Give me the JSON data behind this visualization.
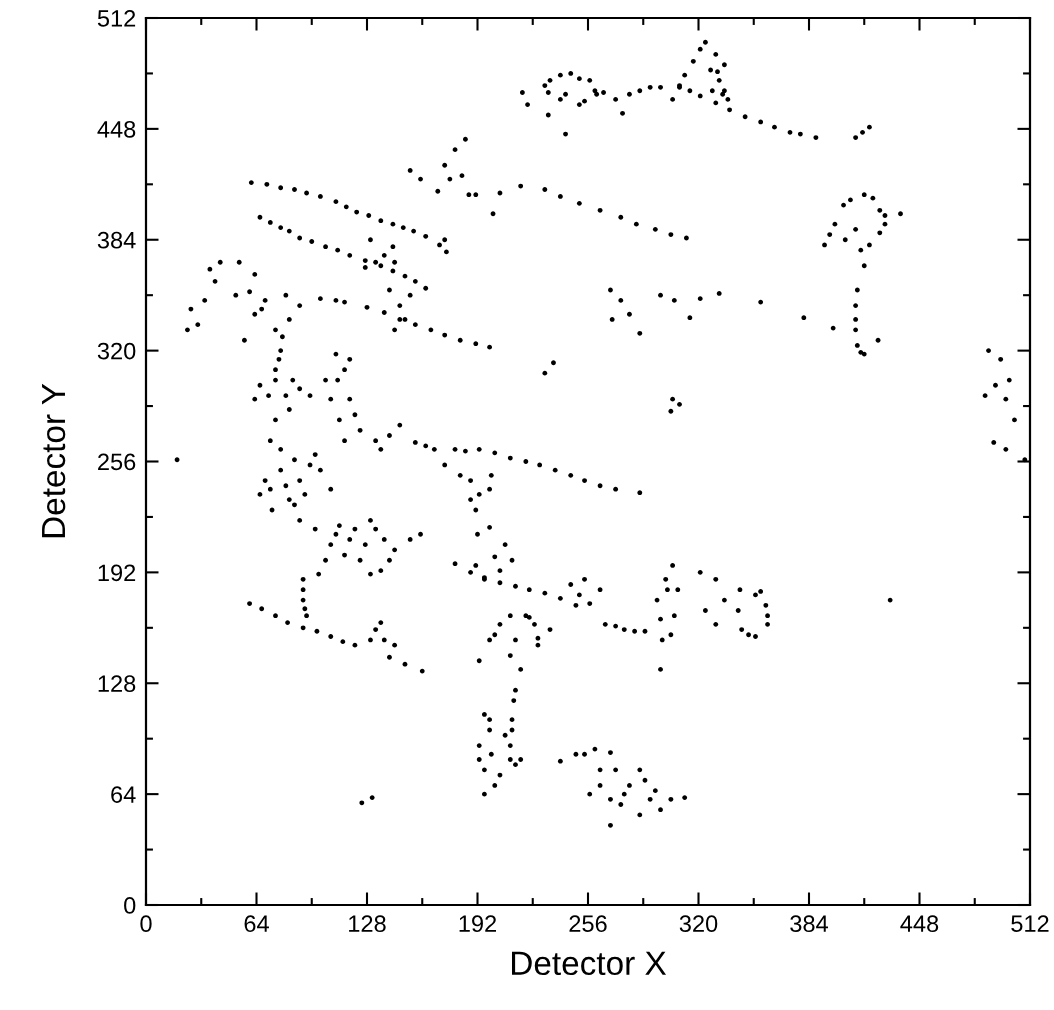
{
  "chart_data": {
    "type": "scatter",
    "xlabel": "Detector X",
    "ylabel": "Detector Y",
    "marker": "circle",
    "xlim": [
      0,
      512
    ],
    "ylim": [
      0,
      512
    ],
    "xticks": [
      0,
      {
        "value": 32,
        "label": null
      },
      64,
      {
        "value": 96,
        "label": null
      },
      128,
      {
        "value": 160,
        "label": null
      },
      192,
      {
        "value": 224,
        "label": null
      },
      256,
      {
        "value": 288,
        "label": null
      },
      320,
      {
        "value": 352,
        "label": null
      },
      384,
      {
        "value": 416,
        "label": null
      },
      448,
      {
        "value": 480,
        "label": null
      },
      512
    ],
    "yticks": [
      0,
      {
        "value": 32,
        "label": null
      },
      64,
      {
        "value": 96,
        "label": null
      },
      128,
      {
        "value": 160,
        "label": null
      },
      192,
      {
        "value": 224,
        "label": null
      },
      256,
      {
        "value": 288,
        "label": null
      },
      320,
      {
        "value": 352,
        "label": null
      },
      384,
      {
        "value": 416,
        "label": null
      },
      448,
      {
        "value": 480,
        "label": null
      },
      512
    ],
    "series": [
      {
        "color": "#000000",
        "x": [
          218,
          221,
          231,
          240,
          251,
          260,
          254,
          243,
          233,
          265,
          272,
          276,
          280,
          292,
          309,
          321,
          338,
          356,
          373,
          388,
          243,
          305,
          312,
          321,
          324,
          330,
          335,
          332,
          328,
          335,
          327,
          337,
          411,
          415,
          419,
          153,
          159,
          169,
          173,
          179,
          185,
          176,
          183,
          187,
          191,
          201,
          205,
          217,
          231,
          251,
          275,
          295,
          313,
          173,
          174,
          170,
          61,
          78,
          93,
          110,
          122,
          136,
          149,
          162,
          66,
          78,
          89,
          104,
          118,
          136,
          150,
          162,
          130,
          138,
          133,
          143,
          127,
          144
        ],
        "values": [
          469,
          462,
          473,
          479,
          477,
          470,
          464,
          468,
          456,
          469,
          465,
          457,
          468,
          472,
          472,
          467,
          459,
          452,
          446,
          443,
          445,
          465,
          479,
          494,
          498,
          491,
          485,
          476,
          470,
          470,
          482,
          465,
          443,
          446,
          449,
          424,
          419,
          412,
          427,
          436,
          442,
          419,
          421,
          410,
          410,
          399,
          411,
          415,
          413,
          405,
          397,
          390,
          385,
          384,
          377,
          381,
          417,
          414,
          411,
          406,
          400,
          395,
          391,
          386,
          397,
          391,
          385,
          380,
          375,
          369,
          363,
          356,
          384,
          375,
          371,
          380,
          368,
          371
        ]
      },
      {
        "color": "#000000",
        "x": [
          37,
          43,
          54,
          63,
          60,
          52,
          40,
          26,
          30,
          24,
          34,
          57,
          63,
          69,
          81,
          89,
          83,
          75,
          67,
          78,
          75,
          79,
          101,
          115,
          128,
          147,
          165,
          182,
          199,
          141,
          147,
          150,
          144,
          153,
          269,
          275,
          280,
          270,
          286,
          298,
          306,
          315,
          321,
          332,
          356,
          381,
          398,
          393,
          399,
          408,
          416,
          425,
          428,
          437,
          425,
          411,
          414,
          416,
          412,
          411,
          412,
          416,
          424,
          488,
          495,
          500,
          492,
          486,
          498,
          503,
          491,
          498,
          509,
          18,
          236,
          231,
          305,
          309,
          304
        ],
        "values": [
          367,
          371,
          371,
          364,
          354,
          352,
          360,
          344,
          335,
          332,
          349,
          326,
          341,
          349,
          352,
          346,
          338,
          332,
          344,
          320,
          309,
          328,
          350,
          348,
          345,
          338,
          332,
          326,
          322,
          355,
          346,
          338,
          332,
          352,
          355,
          349,
          341,
          338,
          330,
          352,
          349,
          339,
          350,
          353,
          348,
          339,
          333,
          381,
          393,
          407,
          410,
          401,
          393,
          399,
          388,
          390,
          378,
          369,
          355,
          338,
          323,
          318,
          326,
          320,
          315,
          303,
          300,
          294,
          292,
          280,
          267,
          263,
          257,
          257,
          313,
          307,
          292,
          289,
          285
        ]
      },
      {
        "color": "#000000",
        "x": [
          66,
          75,
          81,
          89,
          95,
          83,
          75,
          72,
          78,
          63,
          110,
          115,
          118,
          112,
          107,
          104,
          124,
          115,
          133,
          141,
          136,
          147,
          156,
          167,
          173,
          179,
          193,
          211,
          228,
          246,
          263,
          286,
          69,
          78,
          86,
          95,
          83,
          89,
          73,
          66,
          81,
          101,
          107,
          100,
          107,
          112,
          121,
          130,
          138,
          144,
          136,
          124,
          115,
          98,
          127,
          153,
          159,
          91,
          91,
          93,
          60,
          75,
          91,
          107,
          121,
          141,
          160,
          133,
          138,
          144,
          130,
          136,
          125,
          131
        ],
        "values": [
          300,
          303,
          294,
          298,
          294,
          286,
          280,
          268,
          263,
          292,
          318,
          309,
          292,
          280,
          292,
          303,
          274,
          268,
          268,
          271,
          263,
          277,
          267,
          263,
          254,
          263,
          263,
          258,
          254,
          248,
          242,
          238,
          245,
          251,
          257,
          254,
          234,
          222,
          228,
          237,
          242,
          251,
          240,
          191,
          208,
          219,
          217,
          222,
          211,
          205,
          193,
          199,
          202,
          217,
          208,
          211,
          214,
          188,
          176,
          167,
          174,
          167,
          160,
          155,
          150,
          143,
          135,
          159,
          153,
          150,
          153,
          163,
          59,
          62
        ]
      },
      {
        "color": "#000000",
        "x": [
          182,
          188,
          193,
          199,
          191,
          188,
          200,
          192,
          199,
          208,
          212,
          205,
          196,
          191,
          202,
          179,
          188,
          205,
          222,
          240,
          246,
          251,
          257,
          249,
          263,
          254,
          266,
          277,
          289,
          193,
          199,
          205,
          211,
          220,
          225,
          227,
          214,
          211,
          217,
          234,
          214,
          212,
          211,
          196,
          199,
          193,
          200,
          196,
          202,
          196,
          208,
          214,
          217,
          240,
          249,
          260,
          269,
          272,
          263,
          257,
          269,
          277,
          289,
          295,
          298,
          286,
          275,
          269,
          304,
          312,
          301,
          296,
          298,
          304,
          306,
          308,
          305,
          298,
          321,
          330,
          324,
          330,
          335,
          344,
          353,
          359,
          360,
          353,
          345,
          343,
          431
        ],
        "values": [
          248,
          245,
          237,
          240,
          228,
          234,
          248,
          214,
          218,
          208,
          199,
          193,
          188,
          196,
          201,
          197,
          192,
          186,
          182,
          177,
          185,
          179,
          174,
          173,
          182,
          188,
          162,
          159,
          158,
          141,
          153,
          162,
          167,
          167,
          162,
          150,
          153,
          144,
          136,
          159,
          124,
          107,
          92,
          110,
          101,
          92,
          87,
          78,
          69,
          64,
          98,
          81,
          84,
          83,
          87,
          90,
          88,
          78,
          69,
          64,
          61,
          64,
          72,
          66,
          55,
          52,
          58,
          46,
          61,
          62,
          188,
          176,
          165,
          156,
          167,
          182,
          196,
          136,
          192,
          188,
          170,
          162,
          176,
          182,
          179,
          173,
          162,
          155,
          159,
          170,
          176
        ]
      },
      {
        "color": "#000000",
        "x": [
          234,
          246,
          257,
          261,
          251,
          240,
          233,
          286,
          298,
          315,
          330,
          347,
          364,
          379,
          70,
          86,
          101,
          116,
          129,
          143,
          155,
          72,
          83,
          96,
          111,
          127,
          143,
          156,
          240,
          263,
          284,
          304,
          110,
          138,
          156,
          173,
          191,
          309,
          317,
          331,
          334,
          404,
          421,
          428,
          419,
          405,
          396,
          411,
          411,
          414
        ],
        "values": [
          476,
          480,
          476,
          468,
          462,
          465,
          469,
          470,
          472,
          470,
          463,
          455,
          449,
          445,
          416,
          413,
          409,
          403,
          398,
          393,
          389,
          394,
          389,
          383,
          378,
          372,
          366,
          360,
          409,
          401,
          393,
          387,
          349,
          342,
          335,
          329,
          324,
          473,
          487,
          481,
          468,
          404,
          408,
          398,
          381,
          384,
          387,
          346,
          332,
          319
        ]
      },
      {
        "color": "#000000",
        "x": [
          162,
          185,
          202,
          220,
          237,
          254,
          272,
          67,
          82,
          99,
          114,
          150,
          196,
          214,
          231,
          272,
          283,
          213,
          212,
          211,
          91,
          92,
          104,
          118,
          133,
          141,
          130,
          110,
          72,
          86,
          89,
          98,
          92,
          71,
          85,
          77,
          111,
          118,
          121,
          280,
          292,
          286,
          263,
          254,
          199,
          193,
          205,
          356,
          360,
          349,
          202,
          222,
          227,
          299,
          302
        ],
        "values": [
          265,
          262,
          261,
          256,
          251,
          245,
          240,
          171,
          163,
          158,
          152,
          139,
          189,
          184,
          180,
          161,
          158,
          118,
          101,
          84,
          182,
          171,
          199,
          211,
          217,
          199,
          191,
          214,
          240,
          231,
          245,
          260,
          237,
          294,
          303,
          315,
          303,
          315,
          283,
          69,
          61,
          78,
          78,
          87,
          107,
          84,
          75,
          181,
          167,
          156,
          156,
          166,
          154,
          153,
          182
        ]
      }
    ]
  }
}
